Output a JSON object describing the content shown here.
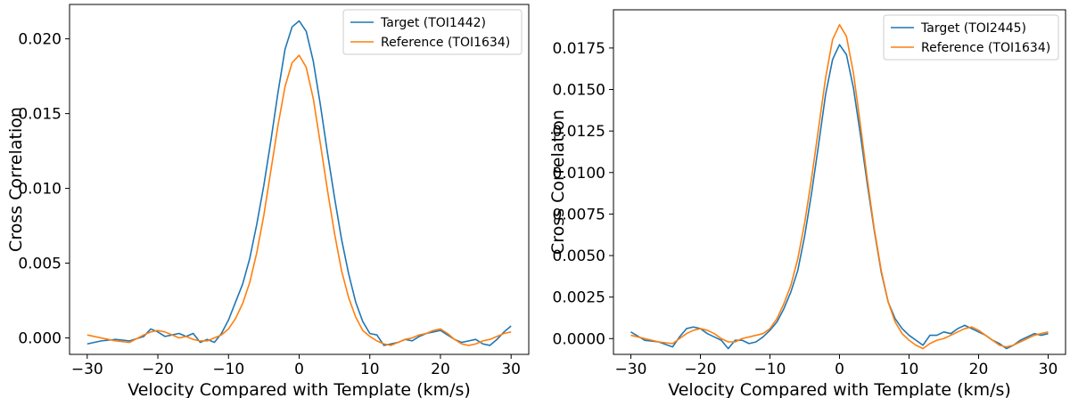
{
  "chart_data": [
    {
      "type": "line",
      "xlabel": "Velocity Compared with Template (km/s)",
      "ylabel": "Cross Correlation",
      "xlim": [
        -32.5,
        32.5
      ],
      "ylim": [
        -0.0011,
        0.0223
      ],
      "xticks": [
        -30,
        -20,
        -10,
        0,
        10,
        20,
        30
      ],
      "xtick_labels": [
        "−30",
        "−20",
        "−10",
        "0",
        "10",
        "20",
        "30"
      ],
      "yticks": [
        0.0,
        0.005,
        0.01,
        0.015,
        0.02
      ],
      "ytick_labels": [
        "0.000",
        "0.005",
        "0.010",
        "0.015",
        "0.020"
      ],
      "legend_position": "top-right",
      "series": [
        {
          "name": "Target (TOI1442)",
          "color": "#1f77b4",
          "x": [
            -30,
            -28,
            -26,
            -24,
            -22,
            -21,
            -20,
            -19,
            -18,
            -17,
            -16,
            -15,
            -14,
            -13,
            -12,
            -11,
            -10,
            -9,
            -8,
            -7,
            -6,
            -5,
            -4,
            -3,
            -2,
            -1,
            0,
            1,
            2,
            3,
            4,
            5,
            6,
            7,
            8,
            9,
            10,
            11,
            12,
            13,
            14,
            15,
            16,
            17,
            18,
            19,
            20,
            21,
            22,
            23,
            24,
            25,
            26,
            27,
            28,
            29,
            30
          ],
          "y": [
            -0.0004,
            -0.0002,
            -0.0001,
            -0.0002,
            0.0001,
            0.0006,
            0.0004,
            0.0001,
            0.0002,
            0.0003,
            0.0001,
            0.0003,
            -0.0003,
            -0.0001,
            -0.0003,
            0.0003,
            0.0012,
            0.0024,
            0.0036,
            0.0053,
            0.0076,
            0.0102,
            0.0132,
            0.0164,
            0.0193,
            0.0208,
            0.0212,
            0.0205,
            0.0185,
            0.0156,
            0.0124,
            0.0094,
            0.0066,
            0.0043,
            0.0024,
            0.0011,
            0.0003,
            0.0002,
            -0.0005,
            -0.0004,
            -0.0003,
            -0.0001,
            -0.0002,
            0.0001,
            0.0003,
            0.0004,
            0.0005,
            0.0002,
            -0.0001,
            -0.0003,
            -0.0002,
            -0.0001,
            -0.0004,
            -0.0005,
            -0.0001,
            0.0004,
            0.0008
          ]
        },
        {
          "name": "Reference (TOI1634)",
          "color": "#ff7f0e",
          "x": [
            -30,
            -28,
            -26,
            -24,
            -22,
            -21,
            -20,
            -19,
            -18,
            -17,
            -16,
            -15,
            -14,
            -13,
            -12,
            -11,
            -10,
            -9,
            -8,
            -7,
            -6,
            -5,
            -4,
            -3,
            -2,
            -1,
            0,
            1,
            2,
            3,
            4,
            5,
            6,
            7,
            8,
            9,
            10,
            11,
            12,
            13,
            14,
            15,
            16,
            17,
            18,
            19,
            20,
            21,
            22,
            23,
            24,
            25,
            26,
            27,
            28,
            29,
            30
          ],
          "y": [
            0.0002,
            0.0,
            -0.0002,
            -0.0003,
            0.0002,
            0.0004,
            0.0005,
            0.0004,
            0.0002,
            0.0,
            0.0001,
            -0.0001,
            -0.0002,
            -0.0002,
            0.0,
            0.0002,
            0.0006,
            0.0013,
            0.0023,
            0.0037,
            0.0057,
            0.0082,
            0.0112,
            0.0142,
            0.0168,
            0.0184,
            0.0189,
            0.0181,
            0.016,
            0.013,
            0.0099,
            0.007,
            0.0045,
            0.0027,
            0.0014,
            0.0005,
            0.0001,
            -0.0002,
            -0.0004,
            -0.0005,
            -0.0003,
            -0.0001,
            0.0,
            0.0002,
            0.0003,
            0.0005,
            0.0006,
            0.0003,
            -0.0001,
            -0.0004,
            -0.0005,
            -0.0004,
            -0.0002,
            -0.0001,
            0.0001,
            0.0003,
            0.0004
          ]
        }
      ]
    },
    {
      "type": "line",
      "xlabel": "Velocity Compared with Template (km/s)",
      "ylabel": "Cross Correlation",
      "xlim": [
        -32.5,
        32.5
      ],
      "ylim": [
        -0.00095,
        0.0198
      ],
      "xticks": [
        -30,
        -20,
        -10,
        0,
        10,
        20,
        30
      ],
      "xtick_labels": [
        "−30",
        "−20",
        "−10",
        "0",
        "10",
        "20",
        "30"
      ],
      "yticks": [
        0.0,
        0.0025,
        0.005,
        0.0075,
        0.01,
        0.0125,
        0.015,
        0.0175
      ],
      "ytick_labels": [
        "0.0000",
        "0.0025",
        "0.0050",
        "0.0075",
        "0.0100",
        "0.0125",
        "0.0150",
        "0.0175"
      ],
      "legend_position": "top-right",
      "series": [
        {
          "name": "Target (TOI2445)",
          "color": "#1f77b4",
          "x": [
            -30,
            -28,
            -26,
            -24,
            -23,
            -22,
            -21,
            -20,
            -19,
            -18,
            -17,
            -16,
            -15,
            -14,
            -13,
            -12,
            -11,
            -10,
            -9,
            -8,
            -7,
            -6,
            -5,
            -4,
            -3,
            -2,
            -1,
            0,
            1,
            2,
            3,
            4,
            5,
            6,
            7,
            8,
            9,
            10,
            11,
            12,
            13,
            14,
            15,
            16,
            17,
            18,
            19,
            20,
            21,
            22,
            23,
            24,
            25,
            26,
            27,
            28,
            29,
            30
          ],
          "y": [
            0.0004,
            -0.0001,
            -0.0002,
            -0.0005,
            0.0001,
            0.0006,
            0.0007,
            0.0006,
            0.0003,
            0.0001,
            -0.0001,
            -0.0006,
            -0.0001,
            -0.0001,
            -0.0003,
            -0.0002,
            0.0001,
            0.0005,
            0.001,
            0.0018,
            0.0028,
            0.0041,
            0.0062,
            0.0088,
            0.0117,
            0.0147,
            0.0168,
            0.0177,
            0.0171,
            0.0151,
            0.0123,
            0.0093,
            0.0065,
            0.004,
            0.0022,
            0.0012,
            0.0006,
            0.0002,
            -0.0001,
            -0.0004,
            0.0002,
            0.0002,
            0.0004,
            0.0003,
            0.0006,
            0.0008,
            0.0006,
            0.0004,
            0.0002,
            -0.0001,
            -0.0003,
            -0.0006,
            -0.0004,
            -0.0001,
            0.0001,
            0.0003,
            0.0002,
            0.0003
          ]
        },
        {
          "name": "Reference (TOI1634)",
          "color": "#ff7f0e",
          "x": [
            -30,
            -28,
            -26,
            -24,
            -23,
            -22,
            -21,
            -20,
            -19,
            -18,
            -17,
            -16,
            -15,
            -14,
            -13,
            -12,
            -11,
            -10,
            -9,
            -8,
            -7,
            -6,
            -5,
            -4,
            -3,
            -2,
            -1,
            0,
            1,
            2,
            3,
            4,
            5,
            6,
            7,
            8,
            9,
            10,
            11,
            12,
            13,
            14,
            15,
            16,
            17,
            18,
            19,
            20,
            21,
            22,
            23,
            24,
            25,
            26,
            27,
            28,
            29,
            30
          ],
          "y": [
            0.0002,
            0.0,
            -0.0002,
            -0.0003,
            0.0,
            0.0003,
            0.0005,
            0.0006,
            0.0005,
            0.0003,
            0.0,
            -0.0002,
            -0.0002,
            0.0,
            0.0001,
            0.0002,
            0.0003,
            0.0006,
            0.0012,
            0.0021,
            0.0032,
            0.0048,
            0.007,
            0.0097,
            0.0127,
            0.0157,
            0.018,
            0.0189,
            0.0182,
            0.016,
            0.0129,
            0.0096,
            0.0066,
            0.0041,
            0.0022,
            0.001,
            0.0003,
            -0.0001,
            -0.0004,
            -0.0006,
            -0.0003,
            -0.0001,
            0.0,
            0.0002,
            0.0004,
            0.0006,
            0.0007,
            0.0005,
            0.0002,
            -0.0001,
            -0.0004,
            -0.0005,
            -0.0004,
            -0.0002,
            0.0,
            0.0002,
            0.0003,
            0.0004
          ]
        }
      ]
    }
  ]
}
